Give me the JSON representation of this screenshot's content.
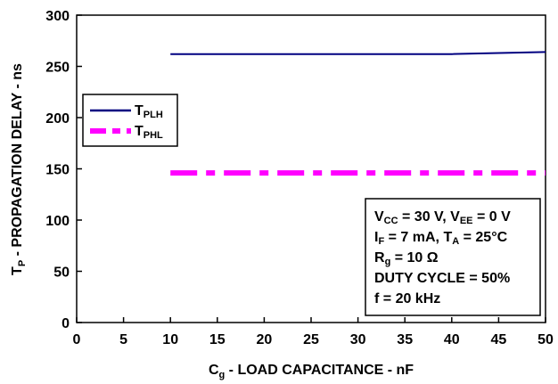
{
  "chart_data": {
    "type": "line",
    "xlabel": {
      "main": "C",
      "sub": "g",
      "rest": " - LOAD CAPACITANCE - nF"
    },
    "ylabel": {
      "main": "T",
      "sub": "P",
      "rest": " - PROPAGATION DELAY - ns"
    },
    "xlim": [
      0,
      50
    ],
    "ylim": [
      0,
      300
    ],
    "x_ticks": [
      0,
      5,
      10,
      15,
      20,
      25,
      30,
      35,
      40,
      45,
      50
    ],
    "y_ticks": [
      0,
      50,
      100,
      150,
      200,
      250,
      300
    ],
    "grid": false,
    "legend_position": "middle-left",
    "series": [
      {
        "name": "T",
        "name_sub": "PLH",
        "style": "solid",
        "color": "#000080",
        "x": [
          10,
          20,
          30,
          40,
          50
        ],
        "y": [
          262,
          262,
          262,
          262,
          264
        ]
      },
      {
        "name": "T",
        "name_sub": "PHL",
        "style": "dashed",
        "color": "#ff00ff",
        "x": [
          10,
          20,
          30,
          40,
          50
        ],
        "y": [
          146,
          146,
          146,
          146,
          146
        ]
      }
    ],
    "conditions": [
      [
        {
          "t": "V"
        },
        {
          "t": "CC",
          "sub": true
        },
        {
          "t": " = 30 V, V"
        },
        {
          "t": "EE",
          "sub": true
        },
        {
          "t": " = 0 V"
        }
      ],
      [
        {
          "t": "I"
        },
        {
          "t": "F",
          "sub": true
        },
        {
          "t": " = 7 mA, T"
        },
        {
          "t": "A",
          "sub": true
        },
        {
          "t": " = 25°C"
        }
      ],
      [
        {
          "t": "R"
        },
        {
          "t": "g",
          "sub": true
        },
        {
          "t": " = 10 Ω"
        }
      ],
      [
        {
          "t": "DUTY CYCLE = 50%"
        }
      ],
      [
        {
          "t": "f = 20 kHz"
        }
      ]
    ]
  }
}
